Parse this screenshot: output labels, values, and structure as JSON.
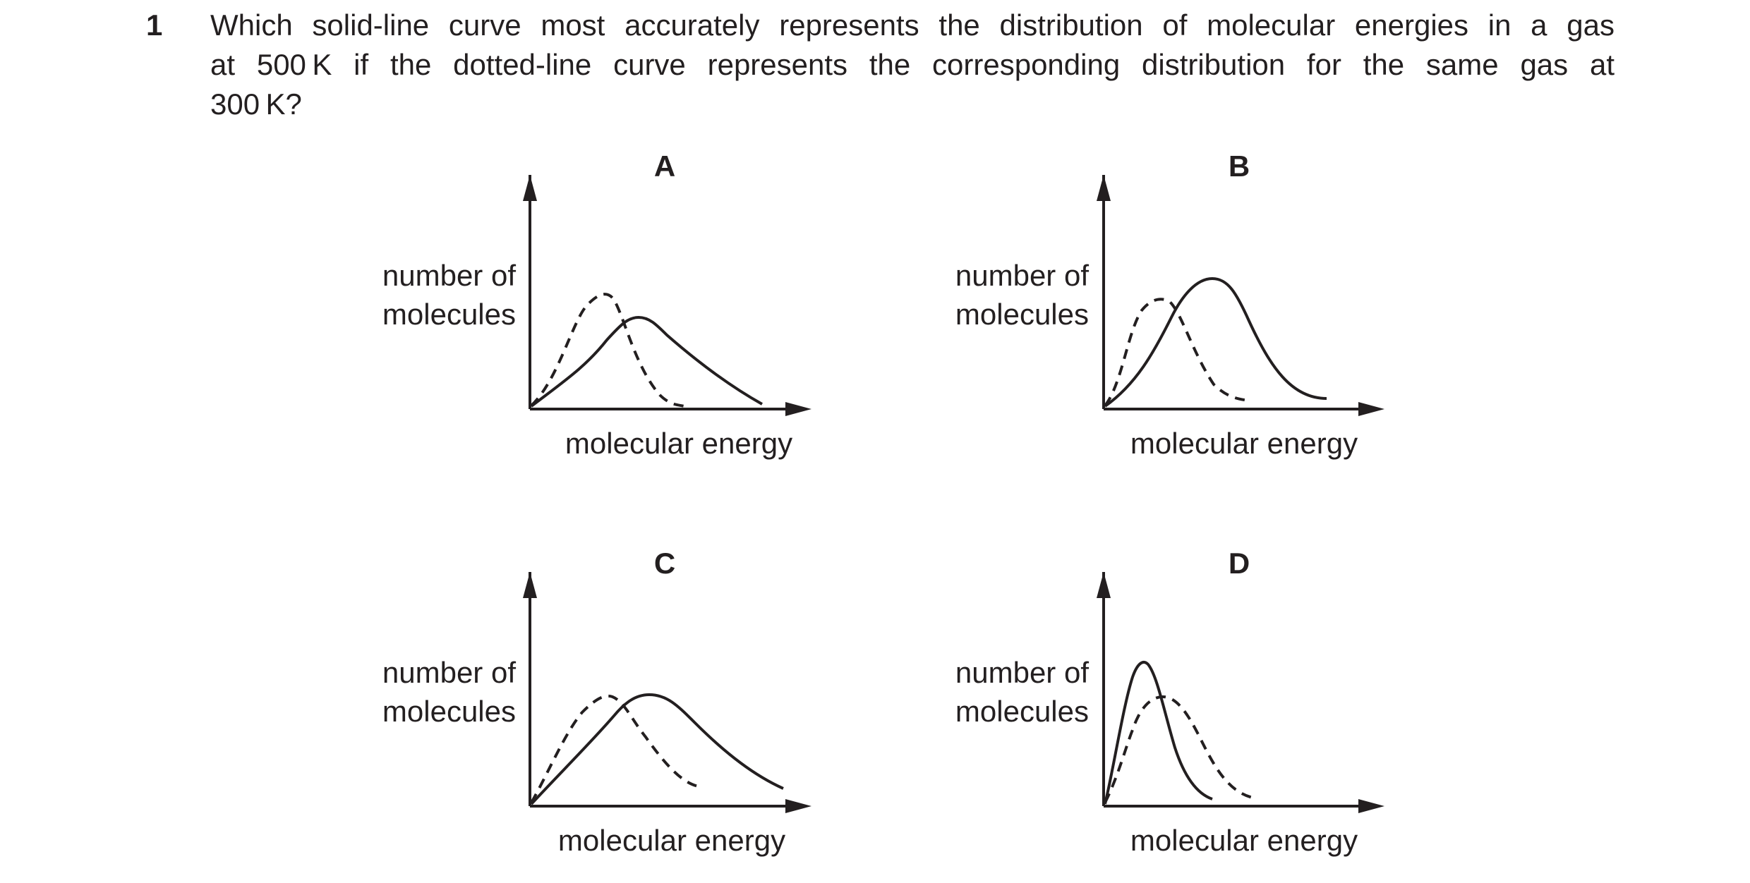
{
  "question": {
    "number": "1",
    "lines": [
      "Which solid-line curve most accurately represents the distribution of molecular energies in a gas",
      "at 500 K if the dotted-line curve represents the corresponding distribution for the same gas at",
      "300 K?"
    ]
  },
  "graphs": [
    {
      "label": "A",
      "ylabel_line1": "number of",
      "ylabel_line2": "molecules",
      "xlabel": "molecular energy"
    },
    {
      "label": "B",
      "ylabel_line1": "number of",
      "ylabel_line2": "molecules",
      "xlabel": "molecular energy"
    },
    {
      "label": "C",
      "ylabel_line1": "number of",
      "ylabel_line2": "molecules",
      "xlabel": "molecular energy"
    },
    {
      "label": "D",
      "ylabel_line1": "number of",
      "ylabel_line2": "molecules",
      "xlabel": "molecular energy"
    }
  ],
  "colors": {
    "ink": "#231f20",
    "background": "#ffffff"
  }
}
